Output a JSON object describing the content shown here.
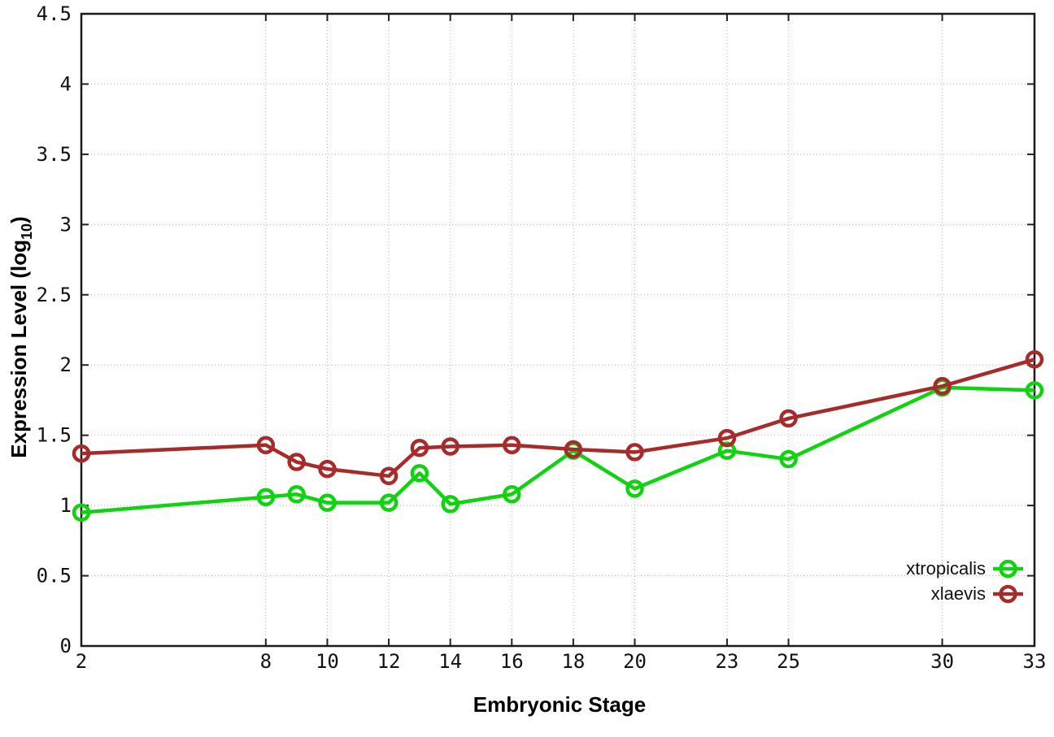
{
  "chart_data": {
    "type": "line",
    "title": "",
    "xlabel": "Embryonic Stage",
    "ylabel": "Expression Level (log10)",
    "ylabel_parts": {
      "main": "Expression Level (log",
      "sub": "10",
      "end": ")"
    },
    "xlim": [
      2,
      33
    ],
    "ylim": [
      0,
      4.5
    ],
    "grid": true,
    "legend_position": "bottom-right inside plot",
    "marker_style": "open-circle",
    "x_ticks": [
      2,
      8,
      10,
      12,
      14,
      16,
      18,
      20,
      23,
      25,
      30,
      33
    ],
    "x_tick_labels": [
      "2",
      "8",
      "10",
      "12",
      "14",
      "16",
      "18",
      "20",
      "23",
      "25",
      "30",
      "33"
    ],
    "y_ticks": [
      0,
      0.5,
      1,
      1.5,
      2,
      2.5,
      3,
      3.5,
      4,
      4.5
    ],
    "y_tick_labels": [
      "0",
      "0.5",
      "1",
      "1.5",
      "2",
      "2.5",
      "3",
      "3.5",
      "4",
      "4.5"
    ],
    "x": [
      2,
      8,
      9,
      10,
      12,
      13,
      14,
      16,
      18,
      20,
      23,
      25,
      30,
      33
    ],
    "series": [
      {
        "name": "xtropicalis",
        "color": "#0ed30e",
        "values": [
          0.95,
          1.06,
          1.08,
          1.02,
          1.02,
          1.23,
          1.01,
          1.08,
          1.39,
          1.12,
          1.39,
          1.33,
          1.84,
          1.82
        ]
      },
      {
        "name": "xlaevis",
        "color": "#a62b2b",
        "values": [
          1.37,
          1.43,
          1.31,
          1.26,
          1.21,
          1.41,
          1.42,
          1.43,
          1.4,
          1.38,
          1.48,
          1.62,
          1.85,
          2.04
        ]
      }
    ]
  }
}
